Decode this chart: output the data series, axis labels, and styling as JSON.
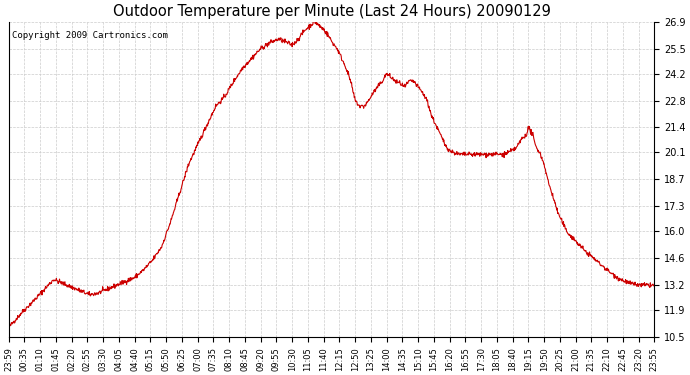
{
  "title": "Outdoor Temperature per Minute (Last 24 Hours) 20090129",
  "copyright_text": "Copyright 2009 Cartronics.com",
  "line_color": "#cc0000",
  "background_color": "#ffffff",
  "grid_color": "#cccccc",
  "yticks": [
    10.5,
    11.9,
    13.2,
    14.6,
    16.0,
    17.3,
    18.7,
    20.1,
    21.4,
    22.8,
    24.2,
    25.5,
    26.9
  ],
  "ylim": [
    10.5,
    26.9
  ],
  "xtick_labels": [
    "23:59",
    "00:35",
    "01:10",
    "01:45",
    "02:20",
    "02:55",
    "03:30",
    "04:05",
    "04:40",
    "05:15",
    "05:50",
    "06:25",
    "07:00",
    "07:35",
    "08:10",
    "08:45",
    "09:20",
    "09:55",
    "10:30",
    "11:05",
    "11:40",
    "12:15",
    "12:50",
    "13:25",
    "14:00",
    "14:35",
    "15:10",
    "15:45",
    "16:20",
    "16:55",
    "17:30",
    "18:05",
    "18:40",
    "19:15",
    "19:50",
    "20:25",
    "21:00",
    "21:35",
    "22:10",
    "22:45",
    "23:20",
    "23:55"
  ],
  "xtick_positions": [
    0,
    35,
    70,
    105,
    140,
    175,
    210,
    245,
    280,
    315,
    350,
    385,
    420,
    455,
    490,
    525,
    560,
    595,
    630,
    665,
    700,
    735,
    770,
    805,
    840,
    875,
    910,
    945,
    980,
    1015,
    1050,
    1085,
    1120,
    1155,
    1190,
    1225,
    1260,
    1295,
    1330,
    1365,
    1400,
    1435
  ],
  "detailed_times": [
    0,
    30,
    60,
    80,
    100,
    120,
    140,
    160,
    180,
    200,
    220,
    240,
    260,
    280,
    300,
    320,
    340,
    360,
    380,
    400,
    420,
    440,
    460,
    480,
    500,
    520,
    540,
    560,
    580,
    600,
    620,
    630,
    640,
    650,
    660,
    670,
    680,
    690,
    700,
    710,
    720,
    730,
    740,
    750,
    760,
    770,
    780,
    790,
    800,
    810,
    820,
    830,
    840,
    850,
    860,
    870,
    880,
    890,
    900,
    910,
    920,
    930,
    940,
    950,
    960,
    970,
    980,
    990,
    1000,
    1010,
    1020,
    1030,
    1040,
    1050,
    1060,
    1070,
    1080,
    1090,
    1100,
    1110,
    1120,
    1130,
    1140,
    1150,
    1155,
    1160,
    1165,
    1170,
    1180,
    1190,
    1200,
    1210,
    1220,
    1230,
    1240,
    1260,
    1280,
    1300,
    1320,
    1340,
    1360,
    1380,
    1400,
    1420,
    1435
  ],
  "detailed_values": [
    11.0,
    11.8,
    12.5,
    13.0,
    13.5,
    13.3,
    13.1,
    12.9,
    12.7,
    12.8,
    13.0,
    13.2,
    13.4,
    13.6,
    14.0,
    14.5,
    15.2,
    16.5,
    18.0,
    19.5,
    20.5,
    21.5,
    22.5,
    23.0,
    23.8,
    24.5,
    25.0,
    25.5,
    25.8,
    26.0,
    25.8,
    25.7,
    25.9,
    26.2,
    26.5,
    26.7,
    26.9,
    26.7,
    26.5,
    26.2,
    25.8,
    25.5,
    25.0,
    24.5,
    23.8,
    22.8,
    22.5,
    22.5,
    22.8,
    23.2,
    23.5,
    23.8,
    24.2,
    24.0,
    23.8,
    23.7,
    23.5,
    23.8,
    23.8,
    23.5,
    23.2,
    22.8,
    22.0,
    21.5,
    21.0,
    20.5,
    20.2,
    20.1,
    20.0,
    20.0,
    20.0,
    20.0,
    20.0,
    20.0,
    20.0,
    20.0,
    20.0,
    20.0,
    20.0,
    20.1,
    20.2,
    20.4,
    20.8,
    21.0,
    21.4,
    21.2,
    21.0,
    20.5,
    20.1,
    19.5,
    18.5,
    17.8,
    17.0,
    16.5,
    16.0,
    15.5,
    15.0,
    14.6,
    14.2,
    13.8,
    13.5,
    13.3,
    13.2,
    13.2,
    13.2
  ]
}
